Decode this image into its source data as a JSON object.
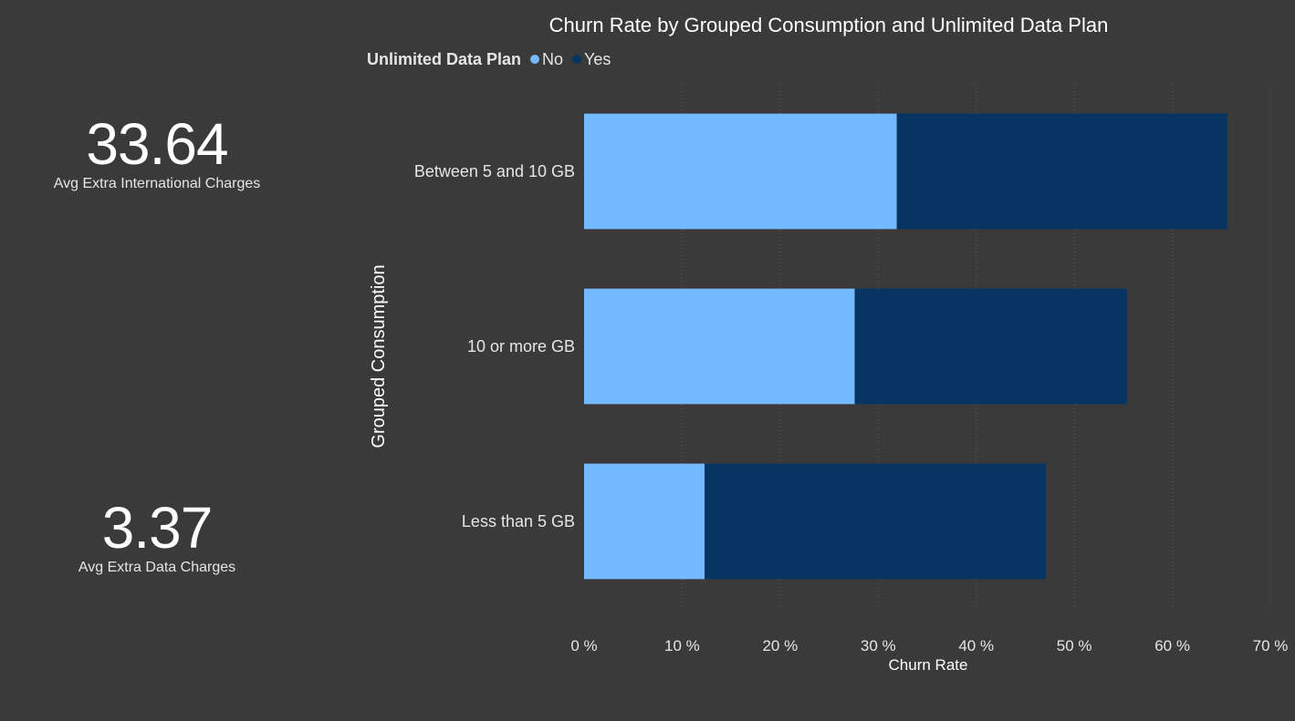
{
  "kpis": {
    "intl": {
      "value": "33.64",
      "label": "Avg Extra International Charges"
    },
    "data": {
      "value": "3.37",
      "label": "Avg Extra Data Charges"
    }
  },
  "colors": {
    "background": "#3a3a3a",
    "no": "#74b9ff",
    "yes": "#073463",
    "text": "#e6e6e6",
    "gridline": "#5a5a5a"
  },
  "chart_data": {
    "type": "bar",
    "orientation": "horizontal",
    "stacked": true,
    "title": "Churn Rate by Grouped Consumption and Unlimited Data Plan",
    "legend_title": "Unlimited Data Plan",
    "legend_position": "top-left",
    "xlabel": "Churn Rate",
    "ylabel": "Grouped Consumption",
    "categories": [
      "Between 5 and 10 GB",
      "10 or more GB",
      "Less than 5 GB"
    ],
    "series": [
      {
        "name": "No",
        "color": "#74b9ff",
        "values": [
          31.9,
          27.6,
          12.3
        ]
      },
      {
        "name": "Yes",
        "color": "#073463",
        "values": [
          33.7,
          27.8,
          34.8
        ]
      }
    ],
    "xlim": [
      0,
      70
    ],
    "xticks": [
      0,
      10,
      20,
      30,
      40,
      50,
      60,
      70
    ],
    "xtick_labels": [
      "0 %",
      "10 %",
      "20 %",
      "30 %",
      "40 %",
      "50 %",
      "60 %",
      "70 %"
    ],
    "grid": true
  }
}
